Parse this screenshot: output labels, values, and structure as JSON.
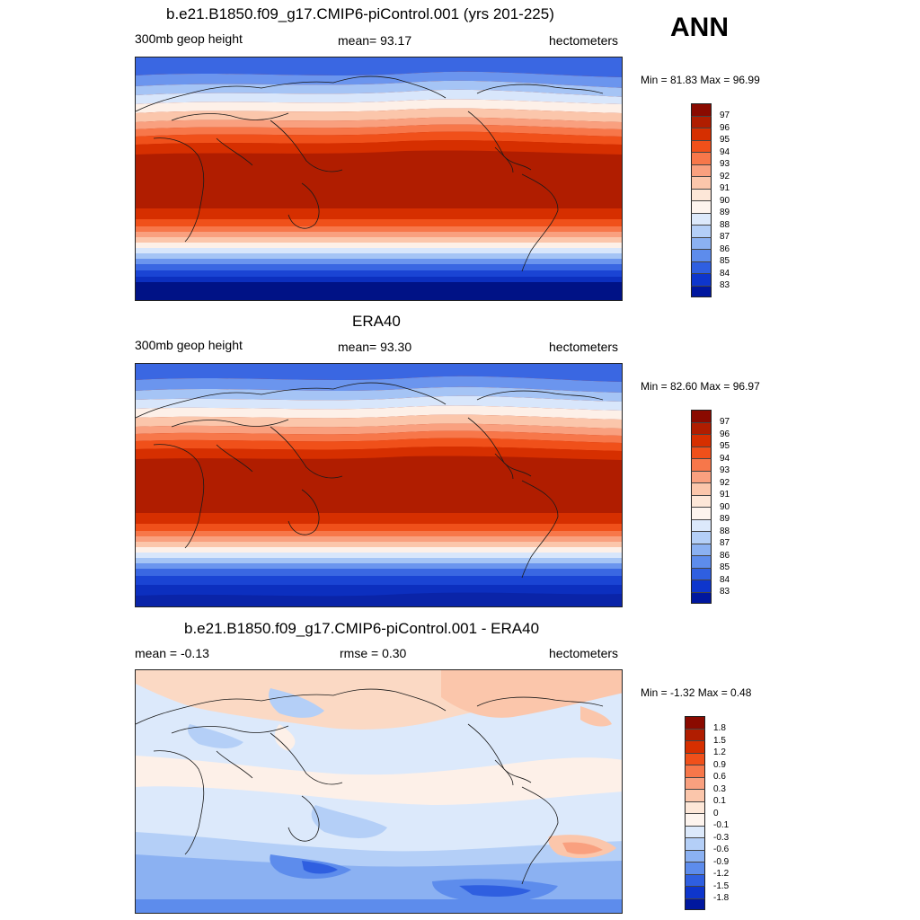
{
  "season": "ANN",
  "panels": [
    {
      "title": "b.e21.B1850.f09_g17.CMIP6-piControl.001 (yrs 201-225)",
      "left_label": "300mb geop height",
      "center_label": "mean=  93.17",
      "right_label": "hectometers",
      "minmax": "Min =  81.83 Max =  96.99",
      "colorbar": {
        "labels": [
          "97",
          "96",
          "95",
          "94",
          "93",
          "92",
          "91",
          "90",
          "89",
          "88",
          "87",
          "86",
          "85",
          "84",
          "83"
        ],
        "colors": [
          "#8a0a00",
          "#b01d00",
          "#d62f00",
          "#f0501a",
          "#f7774a",
          "#f9a07f",
          "#fbc6ab",
          "#fde7d8",
          "#fdf4ee",
          "#dce9fb",
          "#b4cff7",
          "#8bb1f2",
          "#5d8cec",
          "#2f5fe0",
          "#0e36cc",
          "#00179e"
        ]
      }
    },
    {
      "title": "ERA40",
      "left_label": "300mb geop height",
      "center_label": "mean=  93.30",
      "right_label": "hectometers",
      "minmax": "Min =  82.60 Max =  96.97",
      "colorbar": {
        "labels": [
          "97",
          "96",
          "95",
          "94",
          "93",
          "92",
          "91",
          "90",
          "89",
          "88",
          "87",
          "86",
          "85",
          "84",
          "83"
        ],
        "colors": [
          "#8a0a00",
          "#b01d00",
          "#d62f00",
          "#f0501a",
          "#f7774a",
          "#f9a07f",
          "#fbc6ab",
          "#fde7d8",
          "#fdf4ee",
          "#dce9fb",
          "#b4cff7",
          "#8bb1f2",
          "#5d8cec",
          "#2f5fe0",
          "#0e36cc",
          "#00179e"
        ]
      }
    },
    {
      "title": "b.e21.B1850.f09_g17.CMIP6-piControl.001 - ERA40",
      "left_label": "mean =  -0.13",
      "center_label": "rmse =   0.30",
      "right_label": "hectometers",
      "minmax": "Min =  -1.32 Max =   0.48",
      "colorbar": {
        "labels": [
          "1.8",
          "1.5",
          "1.2",
          "0.9",
          "0.6",
          "0.3",
          "0.1",
          "0",
          "-0.1",
          "-0.3",
          "-0.6",
          "-0.9",
          "-1.2",
          "-1.5",
          "-1.8"
        ],
        "colors": [
          "#8a0a00",
          "#b01d00",
          "#d62f00",
          "#f0501a",
          "#f7774a",
          "#f9a07f",
          "#fbc6ab",
          "#fde7d8",
          "#fdf4ee",
          "#dce9fb",
          "#b4cff7",
          "#8bb1f2",
          "#5d8cec",
          "#2f5fe0",
          "#0e36cc",
          "#00179e"
        ]
      }
    }
  ]
}
